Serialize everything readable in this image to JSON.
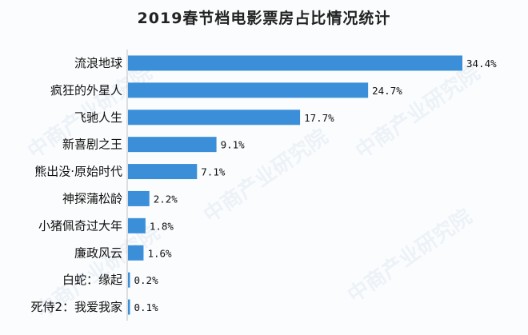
{
  "watermark": "中商产业研究院",
  "chart_data": {
    "type": "bar",
    "orientation": "horizontal",
    "title": "2019春节档电影票房占比情况统计",
    "categories": [
      "流浪地球",
      "疯狂的外星人",
      "飞驰人生",
      "新喜剧之王",
      "熊出没·原始时代",
      "神探蒲松龄",
      "小猪佩奇过大年",
      "廉政风云",
      "白蛇：缘起",
      "死侍2：我爱我家"
    ],
    "values": [
      34.4,
      24.7,
      17.7,
      9.1,
      7.1,
      2.2,
      1.8,
      1.6,
      0.2,
      0.1
    ],
    "value_labels": [
      "34.4%",
      "24.7%",
      "17.7%",
      "9.1%",
      "7.1%",
      "2.2%",
      "1.8%",
      "1.6%",
      "0.2%",
      "0.1%"
    ],
    "bar_color": "#3b8fd9",
    "xlim": [
      0,
      36
    ],
    "grid": false,
    "legend": "none"
  }
}
